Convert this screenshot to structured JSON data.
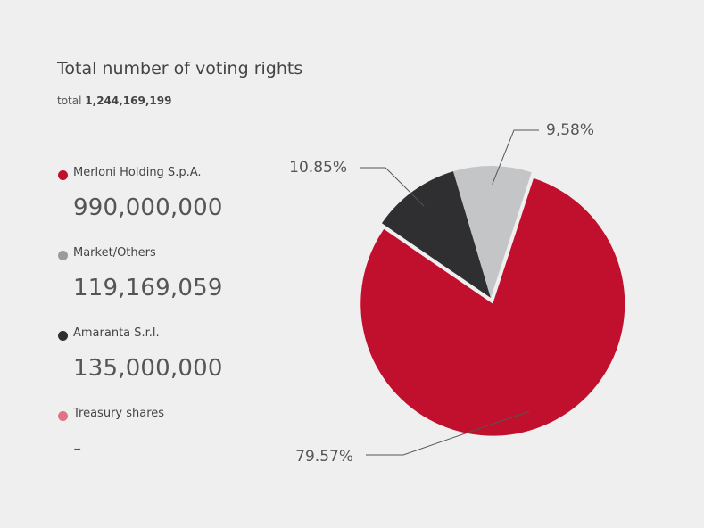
{
  "header": {
    "title": "Total number of voting rights",
    "total_label": "total",
    "total_value": "1,244,169,199"
  },
  "legend": [
    {
      "label": "Merloni Holding S.p.A.",
      "value": "990,000,000",
      "color": "#c1102d"
    },
    {
      "label": "Market/Others",
      "value": "119,169,059",
      "color": "#9b9b9d"
    },
    {
      "label": "Amaranta S.r.l.",
      "value": "135,000,000",
      "color": "#2f2f31"
    },
    {
      "label": "Treasury shares",
      "value": "-",
      "color": "#e07487"
    }
  ],
  "chart_data": {
    "type": "pie",
    "title": "Total number of voting rights",
    "slices": [
      {
        "name": "Merloni Holding S.p.A.",
        "value": 79.57,
        "label": "79.57%",
        "color": "#c1102d",
        "exploded": true
      },
      {
        "name": "Amaranta S.r.l.",
        "value": 10.85,
        "label": "10.85%",
        "color": "#2f2f31",
        "exploded": false
      },
      {
        "name": "Market/Others",
        "value": 9.58,
        "label": "9,58%",
        "color": "#c4c5c7",
        "exploded": false
      }
    ]
  }
}
